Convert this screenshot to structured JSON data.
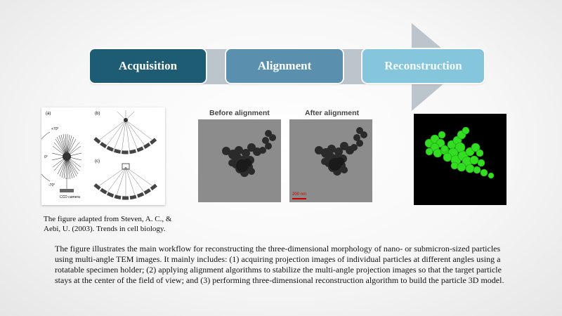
{
  "stages": [
    {
      "label": "Acquisition",
      "color": "#1e5c73"
    },
    {
      "label": "Alignment",
      "color": "#5a8fae"
    },
    {
      "label": "Reconstruction",
      "color": "#86c6dd"
    }
  ],
  "panels": {
    "before_title": "Before alignment",
    "after_title": "After alignment",
    "scale_bar": "200 nm"
  },
  "tomo_figure": {
    "panel_a": "(a)",
    "panel_b": "(b)",
    "panel_c": "(c)",
    "angle_pos": "+70°",
    "angle_zero": "0°",
    "angle_neg": "-70°",
    "camera": "CCD camera"
  },
  "caption": "The figure adapted from Steven, A. C., & Aebi, U. (2003). Trends in cell biology.",
  "description": "The figure illustrates the main workflow for reconstructing the three-dimensional morphology of nano- or submicron-sized particles using multi-angle TEM images. It mainly includes: (1) acquiring projection images of individual particles at different angles using a rotatable specimen holder; (2) applying alignment algorithms to stabilize the multi-angle projection images so that the target particle stays at the center of the field of view; and (3) performing three-dimensional reconstruction algorithm to build the particle 3D model."
}
